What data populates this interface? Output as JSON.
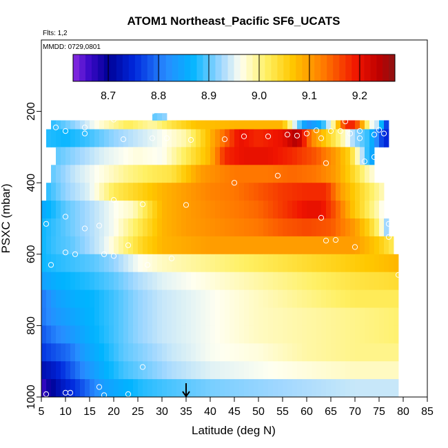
{
  "chart_data": {
    "type": "heatmap",
    "title": "ATOM1 Northeast_Pacific SF6_UCATS",
    "annotations": [
      "Flts: 1,2",
      "MMDD: 0729,0801"
    ],
    "xlabel": "Latitude (deg N)",
    "ylabel": "PSXC (mbar)",
    "xlim": [
      5,
      85
    ],
    "ylim": [
      1000,
      0
    ],
    "xticks": [
      5,
      10,
      15,
      20,
      25,
      30,
      35,
      40,
      45,
      50,
      55,
      60,
      65,
      70,
      75,
      80,
      85
    ],
    "yticks": [
      200,
      400,
      600,
      800,
      1000
    ],
    "colorbar": {
      "range": [
        8.63,
        9.27
      ],
      "ticks": [
        8.7,
        8.8,
        8.9,
        9.0,
        9.1,
        9.2
      ],
      "tick_labels": [
        "8.7",
        "8.8",
        "8.9",
        "9.0",
        "9.1",
        "9.2"
      ]
    },
    "marker_latitude": 35,
    "layers": [
      {
        "p_top": 225,
        "p_bot": 250,
        "lat_min": 7,
        "lat_max": 77,
        "values": [
          [
            7,
            8.88
          ],
          [
            12,
            8.92
          ],
          [
            17,
            8.97
          ],
          [
            23,
            9.02
          ],
          [
            28,
            8.99
          ],
          [
            32,
            9.03
          ],
          [
            37,
            9.07
          ],
          [
            45,
            9.08
          ],
          [
            55,
            9.08
          ],
          [
            60,
            8.82
          ],
          [
            63,
            8.86
          ],
          [
            66,
            9.02
          ],
          [
            67,
            9.13
          ],
          [
            69,
            9.2
          ],
          [
            71,
            9.13
          ],
          [
            73,
            8.97
          ],
          [
            75,
            8.93
          ],
          [
            76,
            8.8
          ],
          [
            77,
            8.74
          ]
        ]
      },
      {
        "p_top": 250,
        "p_bot": 300,
        "lat_min": 6,
        "lat_max": 77,
        "values": [
          [
            6,
            8.88
          ],
          [
            10,
            8.87
          ],
          [
            15,
            8.89
          ],
          [
            20,
            8.92
          ],
          [
            25,
            8.94
          ],
          [
            30,
            8.96
          ],
          [
            35,
            8.99
          ],
          [
            40,
            9.08
          ],
          [
            43,
            9.14
          ],
          [
            46,
            9.2
          ],
          [
            50,
            9.18
          ],
          [
            55,
            9.2
          ],
          [
            58,
            9.25
          ],
          [
            61,
            9.12
          ],
          [
            64,
            9.06
          ],
          [
            67,
            9.0
          ],
          [
            70,
            8.92
          ],
          [
            73,
            8.88
          ],
          [
            76,
            8.75
          ]
        ]
      },
      {
        "p_top": 300,
        "p_bot": 350,
        "lat_min": 8,
        "lat_max": 74,
        "values": [
          [
            8,
            8.9
          ],
          [
            12,
            8.92
          ],
          [
            18,
            8.95
          ],
          [
            25,
            8.97
          ],
          [
            30,
            8.96
          ],
          [
            35,
            9.02
          ],
          [
            40,
            9.08
          ],
          [
            43,
            9.18
          ],
          [
            47,
            9.2
          ],
          [
            52,
            9.2
          ],
          [
            57,
            9.18
          ],
          [
            62,
            9.15
          ],
          [
            66,
            9.1
          ],
          [
            69,
            9.05
          ],
          [
            71,
            8.96
          ],
          [
            73,
            8.86
          ],
          [
            74,
            8.84
          ]
        ]
      },
      {
        "p_top": 350,
        "p_bot": 400,
        "lat_min": 7,
        "lat_max": 74,
        "values": [
          [
            7,
            8.9
          ],
          [
            12,
            8.94
          ],
          [
            18,
            8.97
          ],
          [
            23,
            9.0
          ],
          [
            28,
            9.02
          ],
          [
            32,
            9.03
          ],
          [
            38,
            9.1
          ],
          [
            45,
            9.13
          ],
          [
            52,
            9.13
          ],
          [
            57,
            9.14
          ],
          [
            62,
            9.13
          ],
          [
            66,
            9.1
          ],
          [
            70,
            9.04
          ],
          [
            73,
            8.98
          ],
          [
            74,
            8.97
          ]
        ]
      },
      {
        "p_top": 400,
        "p_bot": 450,
        "lat_min": 6,
        "lat_max": 76,
        "values": [
          [
            6,
            8.88
          ],
          [
            10,
            8.92
          ],
          [
            15,
            8.95
          ],
          [
            20,
            9.02
          ],
          [
            25,
            9.05
          ],
          [
            30,
            9.08
          ],
          [
            35,
            9.1
          ],
          [
            40,
            9.12
          ],
          [
            45,
            9.13
          ],
          [
            50,
            9.15
          ],
          [
            55,
            9.17
          ],
          [
            60,
            9.18
          ],
          [
            64,
            9.18
          ],
          [
            67,
            9.1
          ],
          [
            70,
            9.06
          ],
          [
            73,
            9.02
          ],
          [
            76,
            8.98
          ]
        ]
      },
      {
        "p_top": 450,
        "p_bot": 500,
        "lat_min": 5,
        "lat_max": 76,
        "values": [
          [
            5,
            8.85
          ],
          [
            10,
            8.9
          ],
          [
            15,
            8.93
          ],
          [
            20,
            8.96
          ],
          [
            24,
            8.98
          ],
          [
            27,
            9.03
          ],
          [
            30,
            9.08
          ],
          [
            35,
            9.1
          ],
          [
            42,
            9.12
          ],
          [
            50,
            9.14
          ],
          [
            55,
            9.17
          ],
          [
            60,
            9.2
          ],
          [
            63,
            9.2
          ],
          [
            66,
            9.15
          ],
          [
            69,
            9.08
          ],
          [
            72,
            9.03
          ],
          [
            75,
            8.98
          ],
          [
            76,
            8.95
          ]
        ]
      },
      {
        "p_top": 500,
        "p_bot": 550,
        "lat_min": 5,
        "lat_max": 77,
        "values": [
          [
            5,
            8.87
          ],
          [
            10,
            8.9
          ],
          [
            15,
            8.93
          ],
          [
            20,
            8.96
          ],
          [
            25,
            9.02
          ],
          [
            30,
            9.08
          ],
          [
            35,
            9.1
          ],
          [
            40,
            9.11
          ],
          [
            45,
            9.12
          ],
          [
            50,
            9.13
          ],
          [
            55,
            9.15
          ],
          [
            60,
            9.16
          ],
          [
            65,
            9.15
          ],
          [
            70,
            9.1
          ],
          [
            73,
            9.05
          ],
          [
            75,
            9.0
          ],
          [
            77,
            8.9
          ]
        ]
      },
      {
        "p_top": 550,
        "p_bot": 600,
        "lat_min": 5,
        "lat_max": 78,
        "values": [
          [
            5,
            8.87
          ],
          [
            8,
            8.89
          ],
          [
            11,
            8.9
          ],
          [
            14,
            8.92
          ],
          [
            18,
            8.95
          ],
          [
            22,
            9.0
          ],
          [
            26,
            9.05
          ],
          [
            30,
            9.08
          ],
          [
            40,
            9.1
          ],
          [
            50,
            9.1
          ],
          [
            60,
            9.1
          ],
          [
            70,
            9.1
          ],
          [
            75,
            9.06
          ],
          [
            78,
            9.02
          ]
        ]
      },
      {
        "p_top": 600,
        "p_bot": 650,
        "lat_min": 5,
        "lat_max": 79,
        "values": [
          [
            5,
            8.87
          ],
          [
            8,
            8.88
          ],
          [
            12,
            8.89
          ],
          [
            16,
            8.9
          ],
          [
            20,
            8.92
          ],
          [
            25,
            8.96
          ],
          [
            30,
            8.98
          ],
          [
            40,
            9.0
          ],
          [
            50,
            9.02
          ],
          [
            60,
            9.04
          ],
          [
            70,
            9.06
          ],
          [
            75,
            9.07
          ],
          [
            79,
            9.08
          ]
        ]
      },
      {
        "p_top": 650,
        "p_bot": 700,
        "lat_min": 5,
        "lat_max": 79,
        "values": [
          [
            5,
            8.84
          ],
          [
            8,
            8.86
          ],
          [
            11,
            8.87
          ],
          [
            15,
            8.88
          ],
          [
            20,
            8.9
          ],
          [
            25,
            8.93
          ],
          [
            30,
            8.95
          ],
          [
            40,
            8.97
          ],
          [
            50,
            8.99
          ],
          [
            60,
            9.01
          ],
          [
            70,
            9.03
          ],
          [
            79,
            9.04
          ]
        ]
      },
      {
        "p_top": 700,
        "p_bot": 750,
        "lat_min": 5,
        "lat_max": 79,
        "values": [
          [
            5,
            8.8
          ],
          [
            8,
            8.84
          ],
          [
            12,
            8.86
          ],
          [
            16,
            8.87
          ],
          [
            20,
            8.89
          ],
          [
            25,
            8.92
          ],
          [
            30,
            8.94
          ],
          [
            40,
            8.96
          ],
          [
            50,
            8.98
          ],
          [
            60,
            9.0
          ],
          [
            70,
            9.02
          ],
          [
            79,
            9.02
          ]
        ]
      },
      {
        "p_top": 750,
        "p_bot": 800,
        "lat_min": 5,
        "lat_max": 79,
        "values": [
          [
            5,
            8.8
          ],
          [
            8,
            8.83
          ],
          [
            12,
            8.85
          ],
          [
            16,
            8.87
          ],
          [
            20,
            8.89
          ],
          [
            25,
            8.92
          ],
          [
            30,
            8.94
          ],
          [
            40,
            8.96
          ],
          [
            50,
            8.98
          ],
          [
            60,
            8.99
          ],
          [
            70,
            9.0
          ],
          [
            79,
            9.01
          ]
        ]
      },
      {
        "p_top": 800,
        "p_bot": 850,
        "lat_min": 5,
        "lat_max": 79,
        "values": [
          [
            5,
            8.78
          ],
          [
            8,
            8.81
          ],
          [
            11,
            8.83
          ],
          [
            15,
            8.86
          ],
          [
            20,
            8.89
          ],
          [
            25,
            8.92
          ],
          [
            30,
            8.94
          ],
          [
            40,
            8.96
          ],
          [
            50,
            8.98
          ],
          [
            60,
            8.99
          ],
          [
            70,
            9.0
          ],
          [
            79,
            9.01
          ]
        ]
      },
      {
        "p_top": 850,
        "p_bot": 900,
        "lat_min": 5,
        "lat_max": 79,
        "values": [
          [
            5,
            8.76
          ],
          [
            8,
            8.78
          ],
          [
            11,
            8.8
          ],
          [
            14,
            8.84
          ],
          [
            18,
            8.87
          ],
          [
            22,
            8.9
          ],
          [
            27,
            8.92
          ],
          [
            32,
            8.94
          ],
          [
            40,
            8.96
          ],
          [
            50,
            8.97
          ],
          [
            60,
            8.99
          ],
          [
            70,
            9.0
          ],
          [
            79,
            9.0
          ]
        ]
      },
      {
        "p_top": 900,
        "p_bot": 950,
        "lat_min": 5,
        "lat_max": 79,
        "values": [
          [
            5,
            8.72
          ],
          [
            8,
            8.74
          ],
          [
            11,
            8.78
          ],
          [
            14,
            8.82
          ],
          [
            18,
            8.86
          ],
          [
            22,
            8.89
          ],
          [
            27,
            8.91
          ],
          [
            32,
            8.93
          ],
          [
            40,
            8.95
          ],
          [
            50,
            8.96
          ],
          [
            60,
            8.97
          ],
          [
            70,
            8.98
          ],
          [
            79,
            8.98
          ]
        ]
      },
      {
        "p_top": 950,
        "p_bot": 1000,
        "lat_min": 5,
        "lat_max": 79,
        "values": [
          [
            5,
            8.66
          ],
          [
            7,
            8.7
          ],
          [
            9,
            8.73
          ],
          [
            12,
            8.76
          ],
          [
            15,
            8.8
          ],
          [
            18,
            8.84
          ],
          [
            22,
            8.86
          ],
          [
            26,
            8.88
          ],
          [
            30,
            8.89
          ],
          [
            35,
            8.9
          ],
          [
            40,
            8.91
          ],
          [
            50,
            8.92
          ],
          [
            60,
            8.93
          ],
          [
            70,
            8.94
          ],
          [
            79,
            8.94
          ]
        ]
      },
      {
        "p_top": 205,
        "p_bot": 225,
        "lat_min": 28,
        "lat_max": 31,
        "values": [
          [
            28,
            8.9
          ],
          [
            31,
            8.92
          ]
        ]
      }
    ],
    "samples": [
      [
        8,
        245
      ],
      [
        10,
        255
      ],
      [
        14,
        245
      ],
      [
        14,
        262
      ],
      [
        20,
        223
      ],
      [
        22,
        278
      ],
      [
        28,
        200
      ],
      [
        28,
        275
      ],
      [
        31,
        275
      ],
      [
        36,
        280
      ],
      [
        43,
        278
      ],
      [
        47,
        270
      ],
      [
        52,
        270
      ],
      [
        56,
        265
      ],
      [
        58,
        268
      ],
      [
        60,
        262
      ],
      [
        62,
        253
      ],
      [
        63,
        275
      ],
      [
        65,
        255
      ],
      [
        67,
        255
      ],
      [
        68,
        228
      ],
      [
        69,
        262
      ],
      [
        71,
        255
      ],
      [
        71,
        275
      ],
      [
        74,
        265
      ],
      [
        75,
        252
      ],
      [
        76,
        262
      ],
      [
        72,
        340
      ],
      [
        74,
        328
      ],
      [
        64,
        345
      ],
      [
        54,
        380
      ],
      [
        45,
        400
      ],
      [
        20,
        448
      ],
      [
        26,
        460
      ],
      [
        35,
        462
      ],
      [
        10,
        495
      ],
      [
        17,
        520
      ],
      [
        14,
        528
      ],
      [
        6,
        515
      ],
      [
        10,
        595
      ],
      [
        12,
        600
      ],
      [
        18,
        600
      ],
      [
        20,
        605
      ],
      [
        23,
        575
      ],
      [
        63,
        498
      ],
      [
        64,
        562
      ],
      [
        66,
        560
      ],
      [
        70,
        580
      ],
      [
        77,
        515
      ],
      [
        77,
        552
      ],
      [
        79,
        658
      ],
      [
        7,
        630
      ],
      [
        27,
        630
      ],
      [
        32,
        612
      ],
      [
        26,
        916
      ],
      [
        10,
        988
      ],
      [
        11,
        988
      ],
      [
        17,
        972
      ],
      [
        18,
        995
      ],
      [
        6,
        992
      ],
      [
        23,
        992
      ]
    ]
  }
}
